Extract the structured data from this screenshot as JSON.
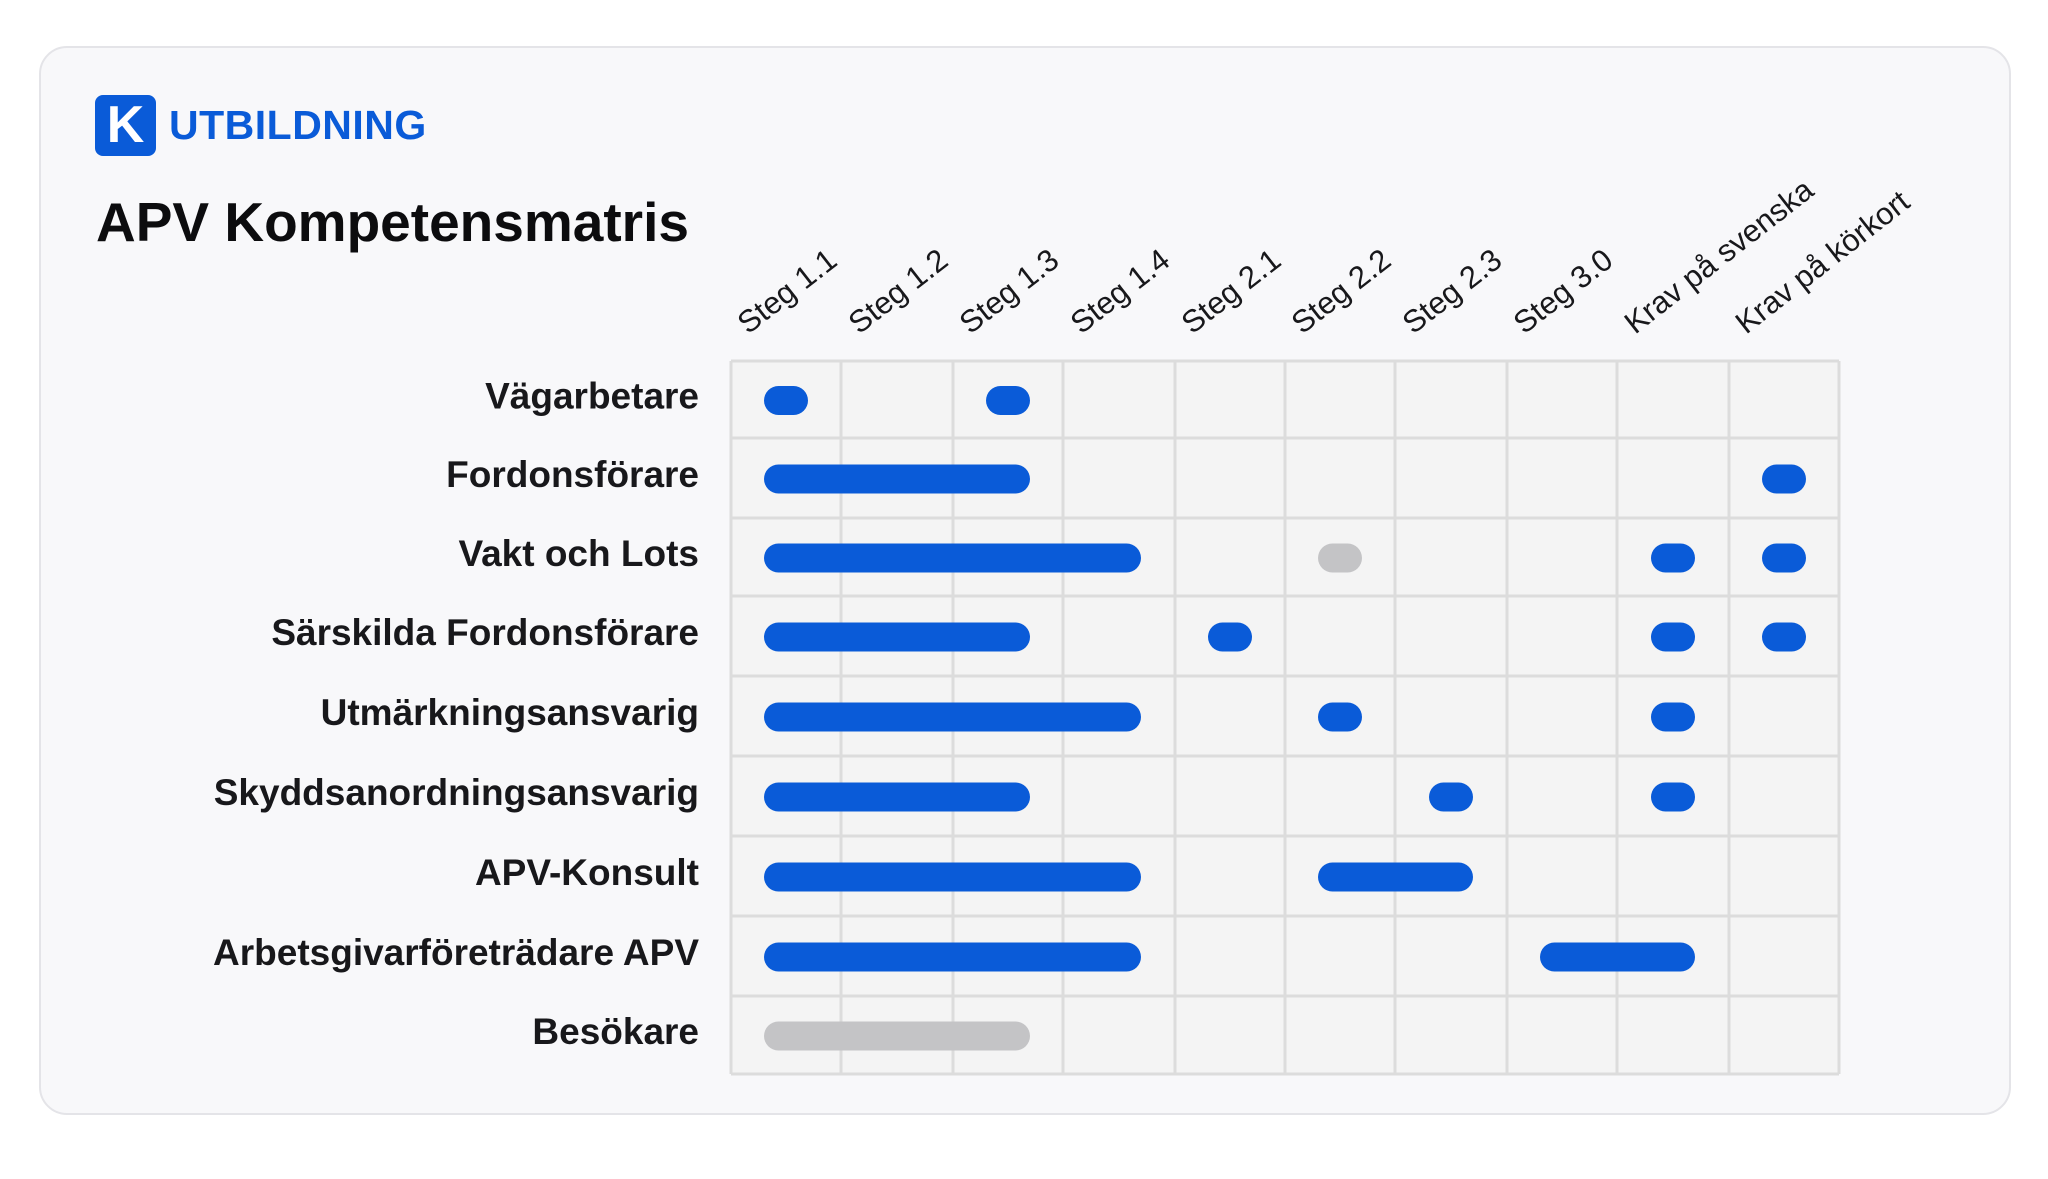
{
  "brand": {
    "logo_letter": "K",
    "name": "UTBILDNING",
    "color": "#0a5bd8"
  },
  "title": "APV Kompetensmatris",
  "colors": {
    "required": "#0a5bd8",
    "optional": "#c4c4c6",
    "grid_line": "#dcdcdc",
    "cell_bg": "#f4f4f4"
  },
  "chart_data": {
    "type": "table",
    "title": "APV Kompetensmatris",
    "columns": [
      "Steg 1.1",
      "Steg 1.2",
      "Steg 1.3",
      "Steg 1.4",
      "Steg 2.1",
      "Steg 2.2",
      "Steg 2.3",
      "Steg 3.0",
      "Krav på svenska",
      "Krav på körkort"
    ],
    "rows": [
      {
        "name": "Vägarbetare",
        "marks": [
          {
            "from": 0,
            "to": 0,
            "kind": "required"
          },
          {
            "from": 2,
            "to": 2,
            "kind": "required"
          }
        ]
      },
      {
        "name": "Fordonsförare",
        "marks": [
          {
            "from": 0,
            "to": 2,
            "kind": "required"
          },
          {
            "from": 9,
            "to": 9,
            "kind": "required"
          }
        ]
      },
      {
        "name": "Vakt och Lots",
        "marks": [
          {
            "from": 0,
            "to": 3,
            "kind": "required"
          },
          {
            "from": 5,
            "to": 5,
            "kind": "optional"
          },
          {
            "from": 8,
            "to": 8,
            "kind": "required"
          },
          {
            "from": 9,
            "to": 9,
            "kind": "required"
          }
        ]
      },
      {
        "name": "Särskilda Fordonsförare",
        "marks": [
          {
            "from": 0,
            "to": 2,
            "kind": "required"
          },
          {
            "from": 4,
            "to": 4,
            "kind": "required"
          },
          {
            "from": 8,
            "to": 8,
            "kind": "required"
          },
          {
            "from": 9,
            "to": 9,
            "kind": "required"
          }
        ]
      },
      {
        "name": "Utmärkningsansvarig",
        "marks": [
          {
            "from": 0,
            "to": 3,
            "kind": "required"
          },
          {
            "from": 5,
            "to": 5,
            "kind": "required"
          },
          {
            "from": 8,
            "to": 8,
            "kind": "required"
          }
        ]
      },
      {
        "name": "Skyddsanordningsansvarig",
        "marks": [
          {
            "from": 0,
            "to": 2,
            "kind": "required"
          },
          {
            "from": 6,
            "to": 6,
            "kind": "required"
          },
          {
            "from": 8,
            "to": 8,
            "kind": "required"
          }
        ]
      },
      {
        "name": "APV-Konsult",
        "marks": [
          {
            "from": 0,
            "to": 3,
            "kind": "required"
          },
          {
            "from": 5,
            "to": 6,
            "kind": "required"
          }
        ]
      },
      {
        "name": "Arbetsgivarföreträdare APV",
        "marks": [
          {
            "from": 0,
            "to": 3,
            "kind": "required"
          },
          {
            "from": 7,
            "to": 8,
            "kind": "required"
          }
        ]
      },
      {
        "name": "Besökare",
        "marks": [
          {
            "from": 0,
            "to": 2,
            "kind": "optional"
          }
        ]
      }
    ]
  }
}
